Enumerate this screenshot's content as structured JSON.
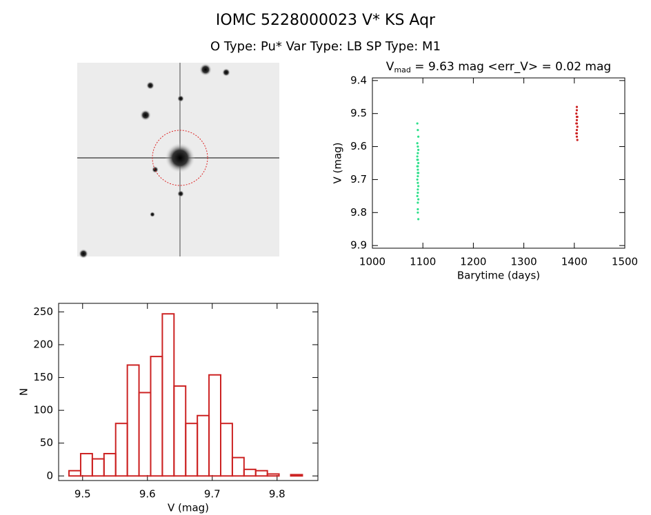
{
  "title": "IOMC 5228000023    V* KS Aqr",
  "subtitle": "O Type: Pu*  Var Type: LB  SP Type: M1",
  "chart_data": [
    {
      "type": "scatter",
      "title": {
        "main": "V",
        "sub": "mad",
        "rest": " = 9.63 mag <err_V> = 0.02 mag"
      },
      "x_label": "Barytime (days)",
      "y_label": "V (mag)",
      "xlim": [
        1000,
        1500
      ],
      "xticks": [
        1000,
        1100,
        1200,
        1300,
        1400,
        1500
      ],
      "ylim": [
        9.392,
        9.908
      ],
      "yticks": [
        9.4,
        9.5,
        9.6,
        9.7,
        9.8,
        9.9
      ],
      "y_inverted": true,
      "series": [
        {
          "name": "green",
          "color": "#2ee08c",
          "x": [
            1089,
            1090,
            1091,
            1089,
            1090,
            1091,
            1090,
            1089,
            1090,
            1091,
            1090,
            1089,
            1090,
            1091,
            1090,
            1089,
            1090,
            1091,
            1090,
            1090,
            1089,
            1091,
            1090,
            1090,
            1090,
            1089,
            1090,
            1091
          ],
          "values": [
            9.53,
            9.55,
            9.57,
            9.59,
            9.6,
            9.61,
            9.62,
            9.63,
            9.64,
            9.65,
            9.66,
            9.66,
            9.67,
            9.68,
            9.69,
            9.7,
            9.71,
            9.72,
            9.73,
            9.74,
            9.75,
            9.76,
            9.77,
            9.79,
            9.8,
            9.64,
            9.68,
            9.82
          ]
        },
        {
          "name": "red",
          "color": "#cc2222",
          "x": [
            1405,
            1405,
            1404,
            1405,
            1406,
            1405,
            1404,
            1405,
            1406,
            1405,
            1405,
            1404,
            1405,
            1406
          ],
          "values": [
            9.48,
            9.49,
            9.5,
            9.51,
            9.51,
            9.52,
            9.53,
            9.53,
            9.54,
            9.55,
            9.56,
            9.56,
            9.57,
            9.58
          ]
        }
      ]
    },
    {
      "type": "histogram",
      "x_label": "V (mag)",
      "y_label": "N",
      "color": "#cc2222",
      "xlim": [
        9.463,
        9.863
      ],
      "xticks": [
        9.5,
        9.6,
        9.7,
        9.8
      ],
      "ylim": [
        -7,
        263
      ],
      "yticks": [
        0,
        50,
        100,
        150,
        200,
        250
      ],
      "bins": [
        9.479,
        9.497,
        9.515,
        9.533,
        9.551,
        9.569,
        9.587,
        9.605,
        9.623,
        9.641,
        9.659,
        9.677,
        9.695,
        9.713,
        9.731,
        9.749,
        9.767,
        9.785,
        9.803,
        9.821,
        9.839
      ],
      "values": [
        8,
        34,
        26,
        34,
        80,
        169,
        127,
        182,
        247,
        137,
        80,
        92,
        154,
        80,
        28,
        10,
        8,
        3,
        0,
        2
      ]
    }
  ]
}
